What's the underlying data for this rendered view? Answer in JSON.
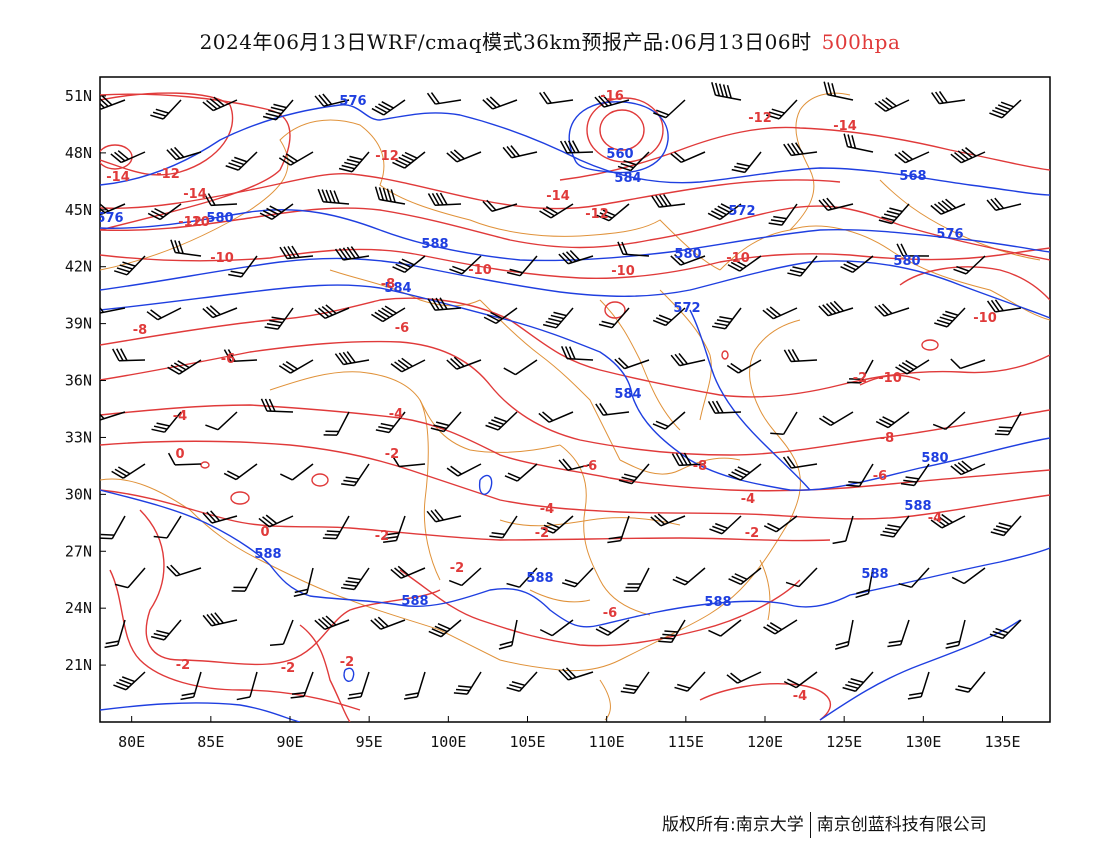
{
  "title": {
    "prefix": "2024年06月13日WRF/cmaq模式36km预报产品:06月13日06时",
    "level": "500hpa"
  },
  "credit": {
    "owner": "版权所有:南京大学",
    "company": "南京创蓝科技有限公司"
  },
  "map": {
    "lon_range": [
      78,
      138
    ],
    "lat_range": [
      18,
      52
    ],
    "x_ticks": [
      "80E",
      "85E",
      "90E",
      "95E",
      "100E",
      "105E",
      "110E",
      "115E",
      "120E",
      "125E",
      "130E",
      "135E"
    ],
    "y_ticks": [
      "51N",
      "48N",
      "45N",
      "42N",
      "39N",
      "36N",
      "33N",
      "30N",
      "27N",
      "24N",
      "21N"
    ],
    "colors": {
      "height_contour": "#1f3fe0",
      "temperature_contour": "#e03a3a",
      "boundary": "#e0923a",
      "wind_barb": "#000000"
    },
    "height_labels": [
      "576",
      "560",
      "584",
      "568",
      "576",
      "572",
      "580",
      "588",
      "576",
      "584",
      "580",
      "572",
      "580",
      "584",
      "580",
      "588",
      "588",
      "588",
      "588",
      "588",
      "588"
    ],
    "temperature_labels": [
      "-16",
      "-12",
      "-14",
      "-14",
      "-12",
      "-12",
      "-10",
      "-10",
      "-10",
      "-10",
      "-8",
      "-6",
      "-6",
      "-4",
      "-4",
      "-2",
      "0",
      "0",
      "-2",
      "-2",
      "-2",
      "-2",
      "-8",
      "-6",
      "-4",
      "-4",
      "-2",
      "-2",
      "-6",
      "-8",
      "-10",
      "-10",
      "-8",
      "-6",
      "-4",
      "-4",
      "-2",
      "-12",
      "-12",
      "-14",
      "-10",
      "-14",
      "-2"
    ]
  }
}
